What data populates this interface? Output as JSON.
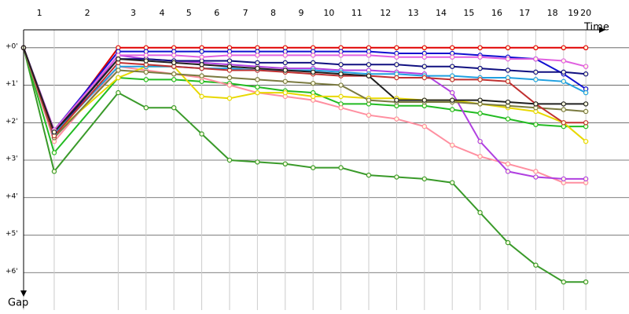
{
  "chart_data": {
    "type": "line",
    "x_label": "Time",
    "y_label": "Gap",
    "x": [
      0,
      1.1,
      3.4,
      4.4,
      5.4,
      6.4,
      7.4,
      8.4,
      9.4,
      10.4,
      11.4,
      12.4,
      13.4,
      14.4,
      15.4,
      16.4,
      17.4,
      18.4,
      19.4,
      20.2
    ],
    "xlim": [
      0,
      21.75
    ],
    "xticks": [
      {
        "value": 0.57,
        "label": "1"
      },
      {
        "value": 2.29,
        "label": "2"
      },
      {
        "value": 3.94,
        "label": "3"
      },
      {
        "value": 4.97,
        "label": "4"
      },
      {
        "value": 5.94,
        "label": "5"
      },
      {
        "value": 6.94,
        "label": "6"
      },
      {
        "value": 7.97,
        "label": "7"
      },
      {
        "value": 8.97,
        "label": "8"
      },
      {
        "value": 9.97,
        "label": "9"
      },
      {
        "value": 10.97,
        "label": "10"
      },
      {
        "value": 11.97,
        "label": "11"
      },
      {
        "value": 13.0,
        "label": "12"
      },
      {
        "value": 14.0,
        "label": "13"
      },
      {
        "value": 15.0,
        "label": "14"
      },
      {
        "value": 16.0,
        "label": "15"
      },
      {
        "value": 17.0,
        "label": "16"
      },
      {
        "value": 18.0,
        "label": "17"
      },
      {
        "value": 19.0,
        "label": "18"
      },
      {
        "value": 19.75,
        "label": "19"
      },
      {
        "value": 20.2,
        "label": "20"
      }
    ],
    "ylim": [
      -0.75,
      7
    ],
    "y_inverted": true,
    "yticks": [
      {
        "value": 0,
        "label": "+0'"
      },
      {
        "value": 1,
        "label": "+1'"
      },
      {
        "value": 2,
        "label": "+2'"
      },
      {
        "value": 3,
        "label": "+3'"
      },
      {
        "value": 4,
        "label": "+4'"
      },
      {
        "value": 5,
        "label": "+5'"
      },
      {
        "value": 6,
        "label": "+6'"
      }
    ],
    "grid": true,
    "series": [
      {
        "color": "#e00000",
        "values": [
          0,
          2.3,
          0,
          0,
          0,
          0,
          0,
          0,
          0,
          0,
          0,
          0,
          0,
          0,
          0,
          0,
          0,
          0,
          0,
          0
        ]
      },
      {
        "color": "#3a9a2a",
        "values": [
          0,
          3.3,
          1.2,
          1.6,
          1.6,
          2.3,
          3.0,
          3.05,
          3.1,
          3.2,
          3.2,
          3.4,
          3.45,
          3.5,
          3.6,
          4.4,
          5.2,
          5.8,
          6.25,
          6.25
        ]
      },
      {
        "color": "#22bb22",
        "values": [
          0,
          2.8,
          0.8,
          0.85,
          0.85,
          0.9,
          0.95,
          1.05,
          1.15,
          1.2,
          1.5,
          1.5,
          1.55,
          1.55,
          1.65,
          1.75,
          1.9,
          2.05,
          2.1,
          2.1
        ]
      },
      {
        "color": "#ff8fa0",
        "values": [
          0,
          2.5,
          0.5,
          0.6,
          0.7,
          0.8,
          1.0,
          1.2,
          1.3,
          1.4,
          1.6,
          1.8,
          1.9,
          2.1,
          2.6,
          2.9,
          3.1,
          3.3,
          3.6,
          3.6
        ]
      },
      {
        "color": "#b040e0",
        "values": [
          0,
          2.4,
          0.2,
          0.3,
          0.35,
          0.4,
          0.45,
          0.5,
          0.55,
          0.55,
          0.6,
          0.6,
          0.65,
          0.7,
          1.2,
          2.5,
          3.3,
          3.45,
          3.5,
          3.5
        ]
      },
      {
        "color": "#e8d800",
        "values": [
          0,
          2.3,
          0.8,
          0.5,
          0.5,
          1.3,
          1.35,
          1.2,
          1.2,
          1.3,
          1.3,
          1.35,
          1.35,
          1.4,
          1.4,
          1.5,
          1.6,
          1.7,
          2.0,
          2.5
        ]
      },
      {
        "color": "#1010d0",
        "values": [
          0,
          2.2,
          0.1,
          0.1,
          0.1,
          0.1,
          0.1,
          0.1,
          0.1,
          0.1,
          0.1,
          0.1,
          0.15,
          0.15,
          0.15,
          0.2,
          0.25,
          0.3,
          0.7,
          1.1
        ]
      },
      {
        "color": "#101080",
        "values": [
          0,
          2.3,
          0.3,
          0.3,
          0.35,
          0.35,
          0.35,
          0.4,
          0.4,
          0.4,
          0.45,
          0.45,
          0.45,
          0.5,
          0.5,
          0.55,
          0.6,
          0.65,
          0.65,
          0.7
        ]
      },
      {
        "color": "#20a0e0",
        "values": [
          0,
          2.3,
          0.5,
          0.5,
          0.5,
          0.55,
          0.55,
          0.6,
          0.6,
          0.6,
          0.65,
          0.7,
          0.7,
          0.75,
          0.75,
          0.8,
          0.8,
          0.85,
          0.9,
          1.2
        ]
      },
      {
        "color": "#7a7a40",
        "values": [
          0,
          2.4,
          0.6,
          0.65,
          0.7,
          0.75,
          0.8,
          0.85,
          0.9,
          0.95,
          1.0,
          1.4,
          1.45,
          1.45,
          1.45,
          1.5,
          1.55,
          1.6,
          1.65,
          1.7
        ]
      },
      {
        "color": "#e060e0",
        "values": [
          0,
          2.2,
          0.2,
          0.2,
          0.2,
          0.25,
          0.2,
          0.2,
          0.2,
          0.2,
          0.2,
          0.2,
          0.25,
          0.25,
          0.25,
          0.25,
          0.3,
          0.3,
          0.35,
          0.5
        ]
      },
      {
        "color": "#c03030",
        "values": [
          0,
          2.35,
          0.4,
          0.45,
          0.5,
          0.55,
          0.6,
          0.6,
          0.65,
          0.7,
          0.75,
          0.75,
          0.8,
          0.8,
          0.85,
          0.85,
          0.9,
          1.5,
          2.0,
          2.0
        ]
      },
      {
        "color": "#202020",
        "values": [
          0,
          2.25,
          0.3,
          0.35,
          0.4,
          0.45,
          0.5,
          0.55,
          0.6,
          0.65,
          0.7,
          0.75,
          1.4,
          1.4,
          1.4,
          1.4,
          1.45,
          1.5,
          1.5,
          1.5
        ]
      }
    ]
  }
}
